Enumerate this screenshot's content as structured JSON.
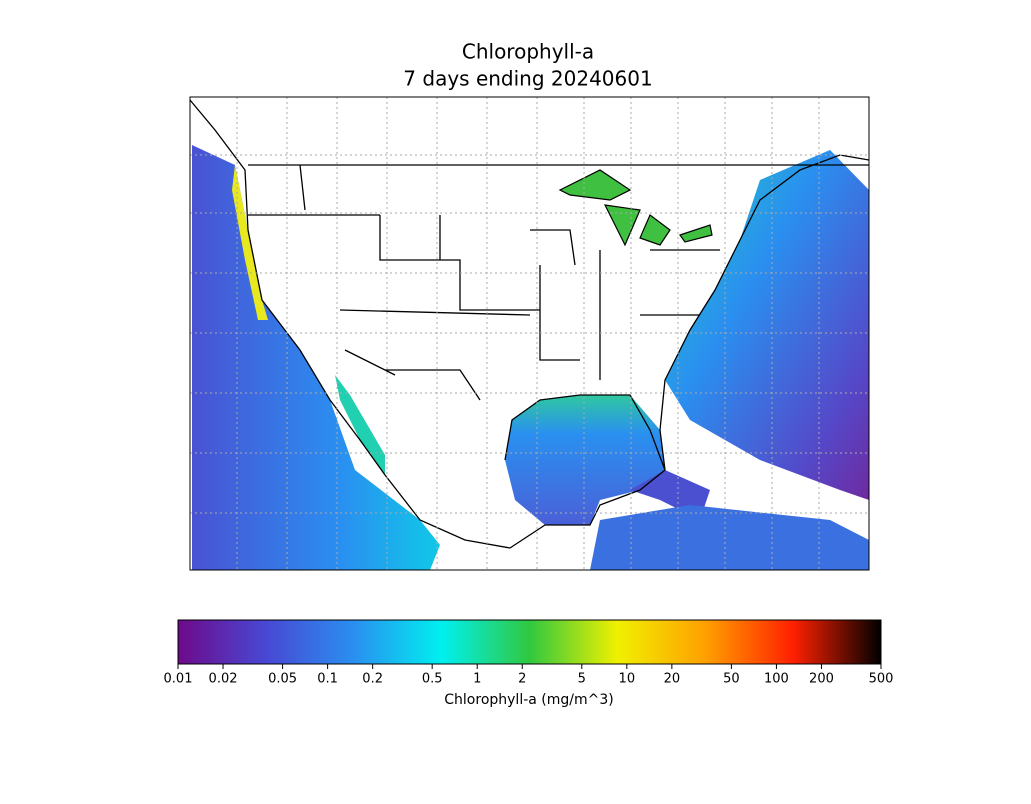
{
  "title": "Chlorophyll-a",
  "subtitle": "7 days ending 20240601",
  "colorbar": {
    "label": "Chlorophyll-a (mg/m^3)",
    "log": true,
    "lim": [
      0.01,
      500
    ],
    "ticks": [
      0.01,
      0.02,
      0.05,
      0.1,
      0.2,
      0.5,
      1,
      2,
      5,
      10,
      20,
      50,
      100,
      200,
      500
    ],
    "colors": [
      "#6e0a8a",
      "#4848d4",
      "#2a8ff0",
      "#00f0f0",
      "#30c840",
      "#f0f000",
      "#ffa000",
      "#ff2000",
      "#000000"
    ]
  }
}
